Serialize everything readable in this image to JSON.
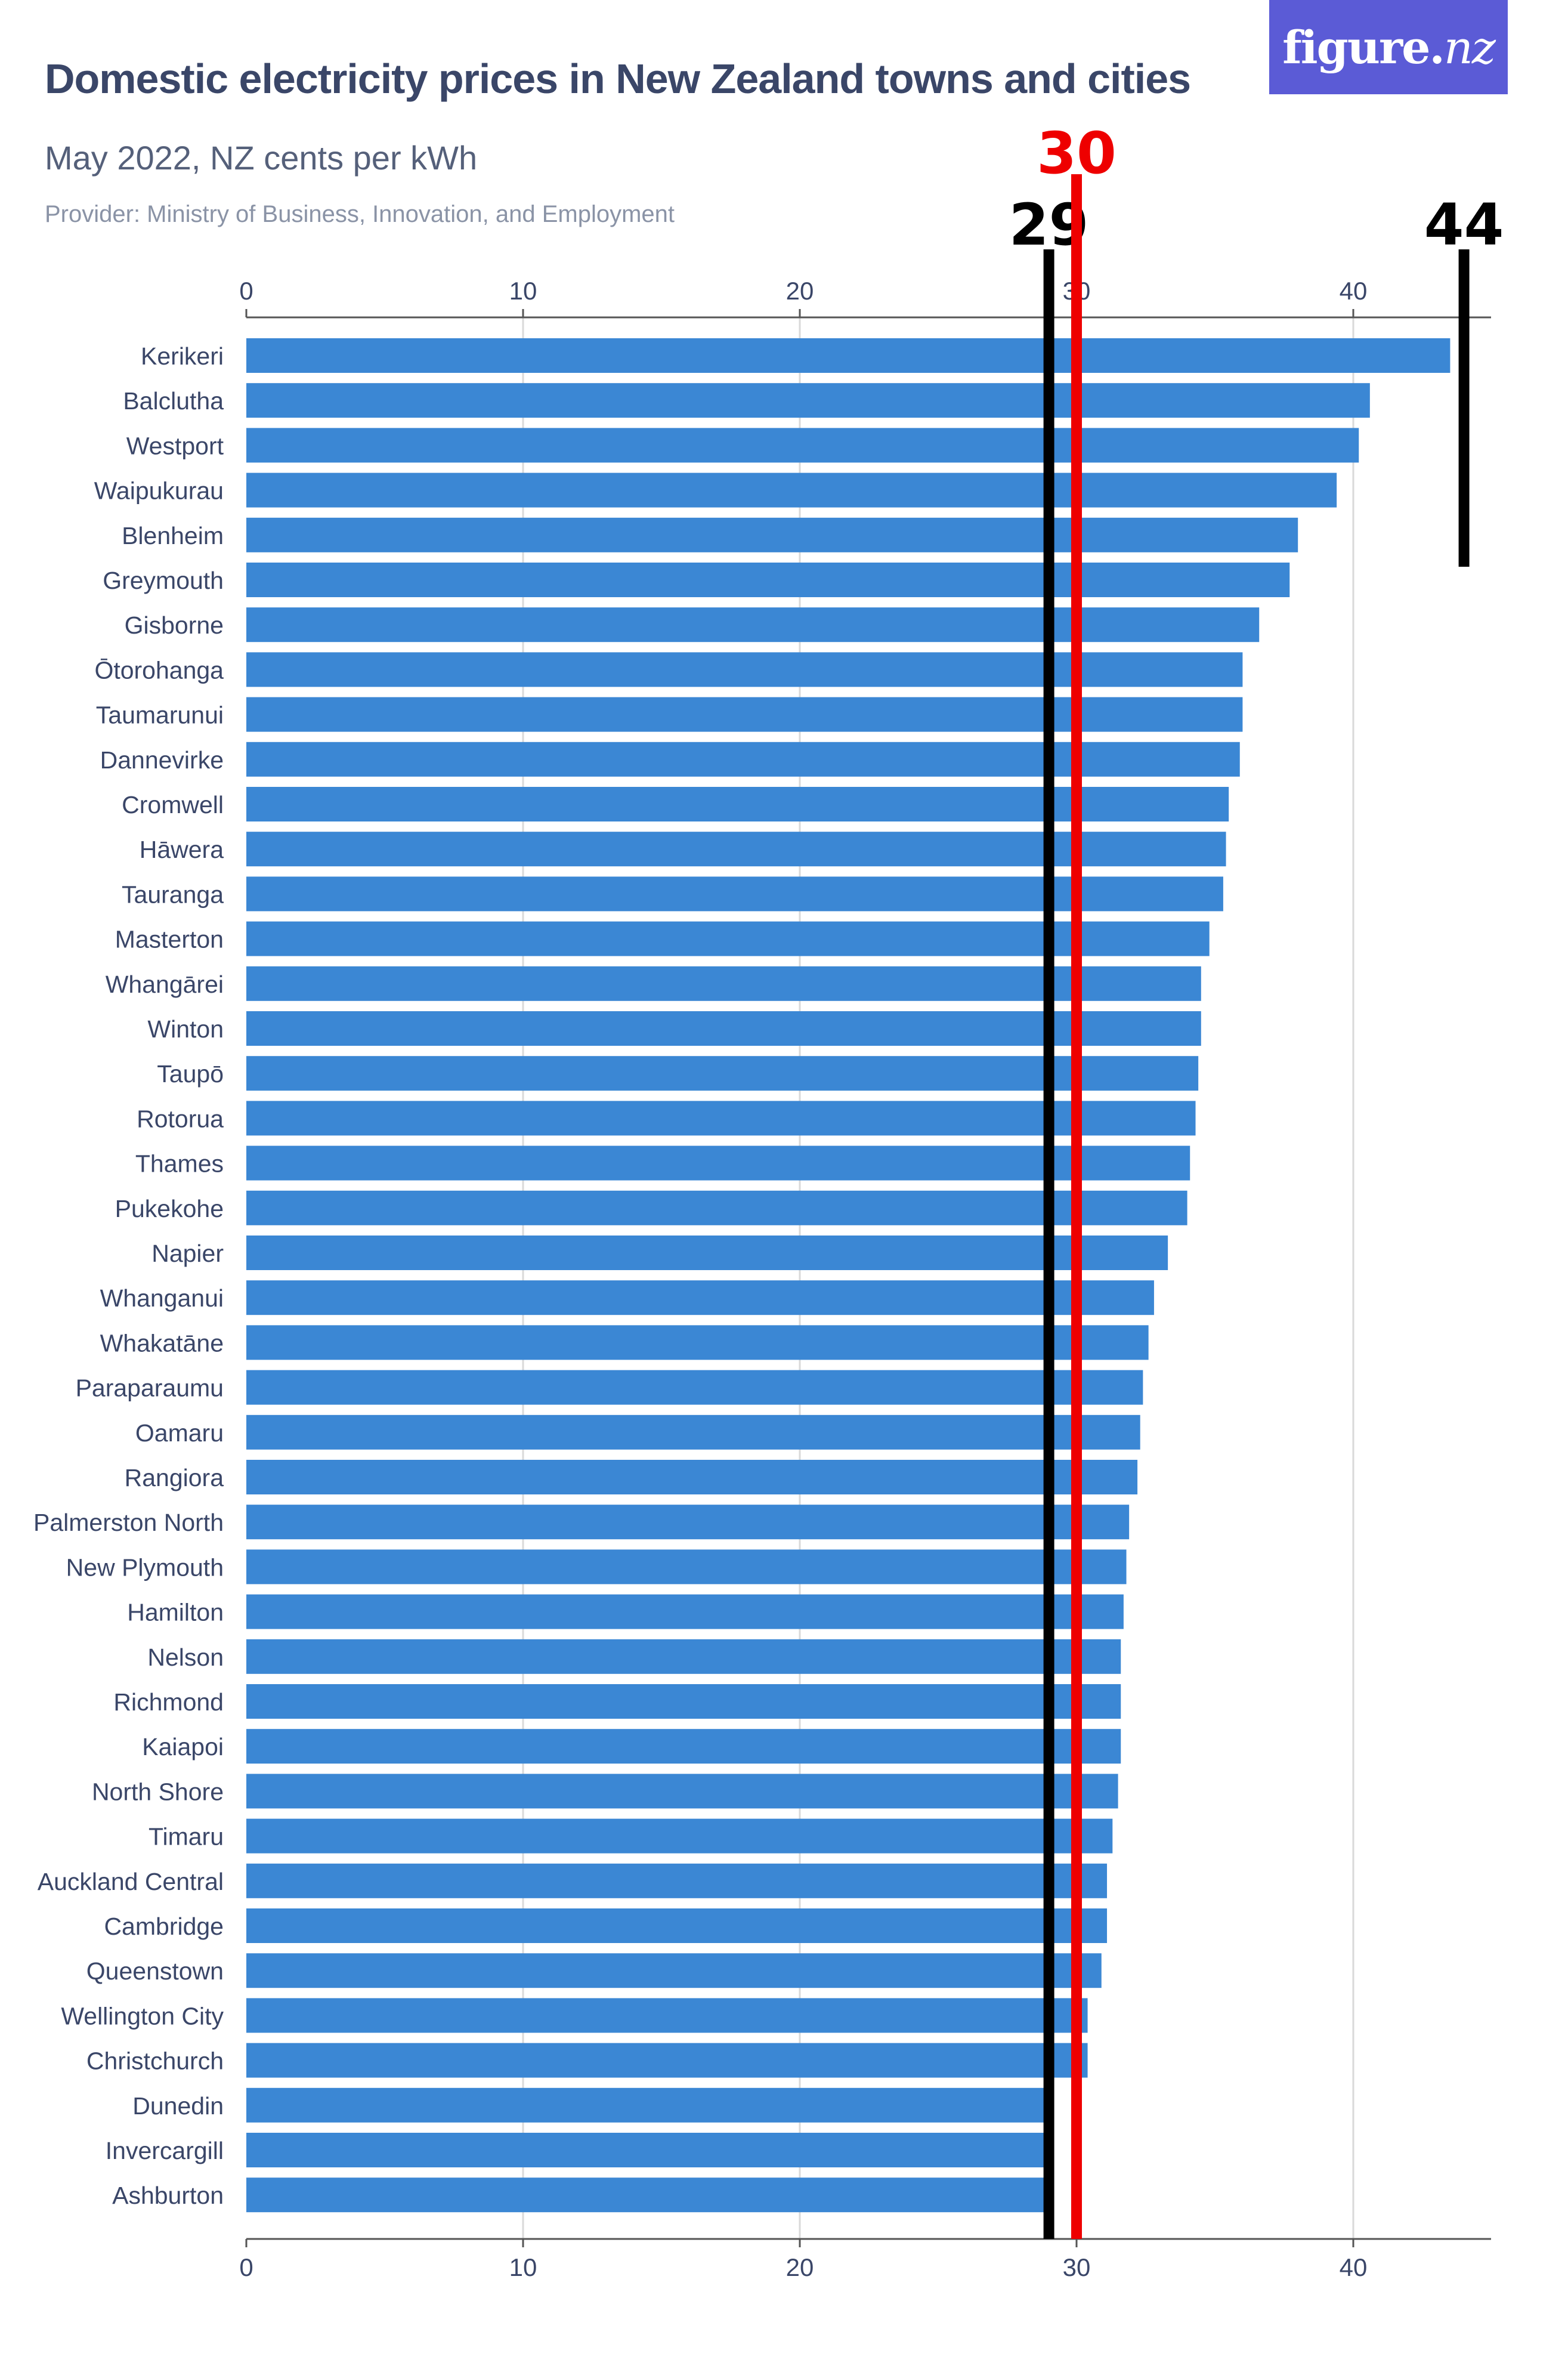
{
  "header": {
    "title": "Domestic electricity prices in New Zealand towns and cities",
    "subtitle": "May 2022, NZ cents per kWh",
    "provider": "Provider: Ministry of Business, Innovation, and Employment"
  },
  "logo": {
    "main": "figure.",
    "accent": "nz"
  },
  "colors": {
    "bar": "#3b87d4",
    "grid": "#d9d9d9",
    "axis": "#555555",
    "label": "#3a4668",
    "marker_black": "#000000",
    "marker_red": "#ee0000"
  },
  "markers": [
    {
      "value": 29,
      "label": "29",
      "color": "#000000",
      "span": "full"
    },
    {
      "value": 30,
      "label": "30",
      "color": "#ee0000",
      "span": "full"
    },
    {
      "value": 44,
      "label": "44",
      "color": "#000000",
      "span": "top"
    }
  ],
  "chart_data": {
    "type": "bar",
    "orientation": "horizontal",
    "xlim": [
      0,
      45
    ],
    "ticks": [
      0,
      10,
      20,
      30,
      40
    ],
    "grid": true,
    "categories": [
      "Kerikeri",
      "Balclutha",
      "Westport",
      "Waipukurau",
      "Blenheim",
      "Greymouth",
      "Gisborne",
      "Ōtorohanga",
      "Taumarunui",
      "Dannevirke",
      "Cromwell",
      "Hāwera",
      "Tauranga",
      "Masterton",
      "Whangārei",
      "Winton",
      "Taupō",
      "Rotorua",
      "Thames",
      "Pukekohe",
      "Napier",
      "Whanganui",
      "Whakatāne",
      "Paraparaumu",
      "Oamaru",
      "Rangiora",
      "Palmerston North",
      "New Plymouth",
      "Hamilton",
      "Nelson",
      "Richmond",
      "Kaiapoi",
      "North Shore",
      "Timaru",
      "Auckland Central",
      "Cambridge",
      "Queenstown",
      "Wellington City",
      "Christchurch",
      "Dunedin",
      "Invercargill",
      "Ashburton"
    ],
    "values": [
      43.5,
      40.6,
      40.2,
      39.4,
      38.0,
      37.7,
      36.6,
      36.0,
      36.0,
      35.9,
      35.5,
      35.4,
      35.3,
      34.8,
      34.5,
      34.5,
      34.4,
      34.3,
      34.1,
      34.0,
      33.3,
      32.8,
      32.6,
      32.4,
      32.3,
      32.2,
      31.9,
      31.8,
      31.7,
      31.6,
      31.6,
      31.6,
      31.5,
      31.3,
      31.1,
      31.1,
      30.9,
      30.4,
      30.4,
      28.9,
      28.9,
      28.9
    ]
  }
}
